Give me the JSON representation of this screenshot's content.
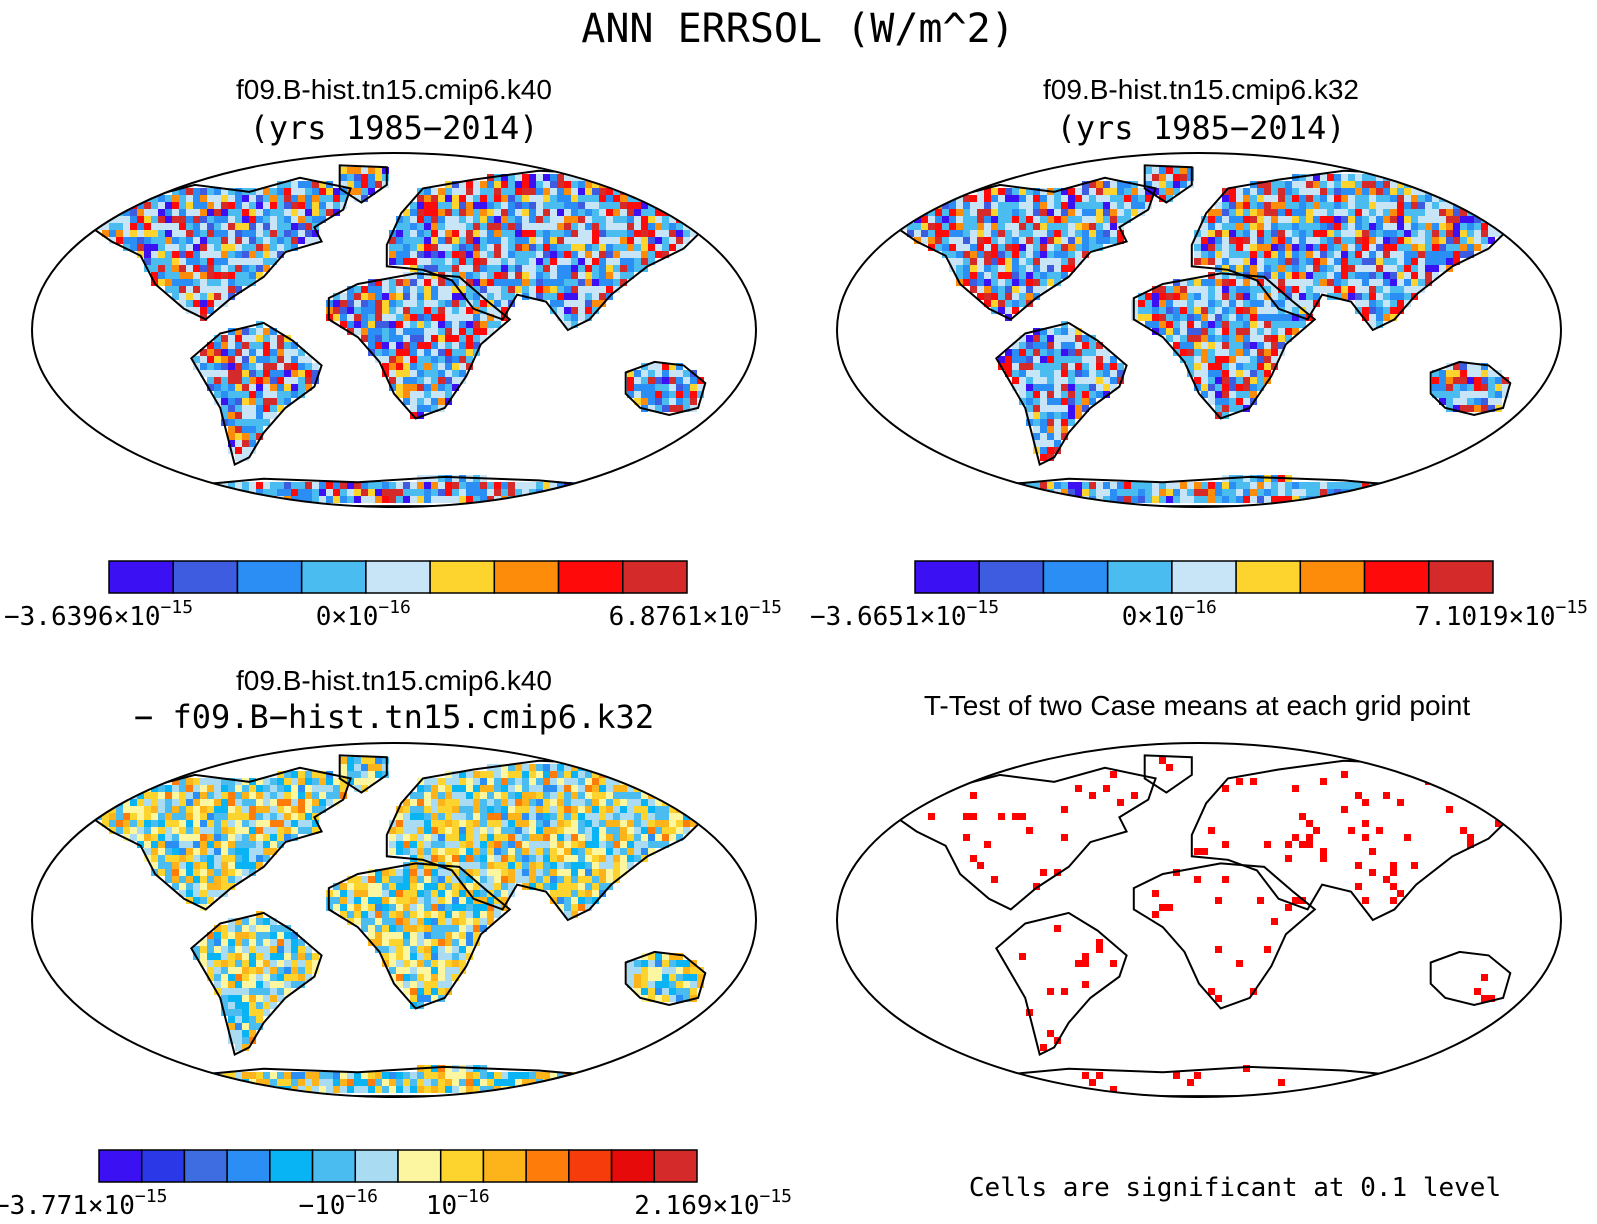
{
  "figure": {
    "title": "ANN ERRSOL (W/m^2)"
  },
  "palette": {
    "land_outline": "#000000",
    "significance_color": "#ff0000"
  },
  "panels": [
    {
      "id": "case1",
      "title_line1": "f09.B-hist.tn15.cmip6.k40",
      "title_line2": "(yrs 1985−2014)",
      "field": "mixed",
      "colorbar": {
        "colors": [
          "#3b10f2",
          "#3d5ce0",
          "#2b8ef5",
          "#4bbcef",
          "#c7e5f6",
          "#fdd32e",
          "#fd8c0a",
          "#ff0a0a",
          "#d42a2a"
        ],
        "labels": [
          {
            "mantissa": "−3.6396×10",
            "exponent": "−15",
            "pos": 0
          },
          {
            "mantissa": "0×10",
            "exponent": "−16",
            "pos": 0.44
          },
          {
            "mantissa": "6.8761×10",
            "exponent": "−15",
            "pos": 1
          }
        ]
      }
    },
    {
      "id": "case2",
      "title_line1": "f09.B-hist.tn15.cmip6.k32",
      "title_line2": "(yrs 1985−2014)",
      "field": "mixed",
      "colorbar": {
        "colors": [
          "#3b10f2",
          "#3d5ce0",
          "#2b8ef5",
          "#4bbcef",
          "#c7e5f6",
          "#fdd32e",
          "#fd8c0a",
          "#ff0a0a",
          "#d42a2a"
        ],
        "labels": [
          {
            "mantissa": "−3.6651×10",
            "exponent": "−15",
            "pos": 0
          },
          {
            "mantissa": "0×10",
            "exponent": "−16",
            "pos": 0.44
          },
          {
            "mantissa": "7.1019×10",
            "exponent": "−15",
            "pos": 1
          }
        ]
      }
    },
    {
      "id": "diff",
      "title_line1": "f09.B-hist.tn15.cmip6.k40",
      "title_line2": "− f09.B−hist.tn15.cmip6.k32",
      "field": "diff",
      "colorbar": {
        "colors": [
          "#3b10f2",
          "#2b38e8",
          "#3d6de0",
          "#2b8ef5",
          "#09b4f5",
          "#4bbcef",
          "#a9dcf3",
          "#fdf6a0",
          "#fdd32e",
          "#fdb41a",
          "#fd7c0a",
          "#f53c0a",
          "#e60a0a",
          "#d42a2a"
        ],
        "labels": [
          {
            "mantissa": "−3.771×10",
            "exponent": "−15",
            "pos": 0
          },
          {
            "mantissa": "−10",
            "exponent": "−16",
            "pos": 0.4
          },
          {
            "mantissa": "10",
            "exponent": "−16",
            "pos": 0.6
          },
          {
            "mantissa": "2.169×10",
            "exponent": "−15",
            "pos": 1
          }
        ]
      }
    },
    {
      "id": "ttest",
      "title_line1": "T-Test of two Case means at each grid point",
      "title_line2": "",
      "field": "ttest",
      "footnote": "Cells are significant at 0.1 level"
    }
  ]
}
